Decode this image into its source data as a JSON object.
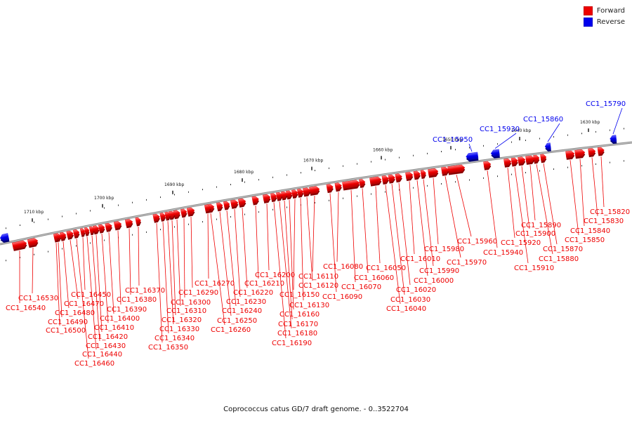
{
  "legend": {
    "forward": {
      "label": "Forward",
      "color": "#ee0000"
    },
    "reverse": {
      "label": "Reverse",
      "color": "#0000ee"
    }
  },
  "caption": "Coprococcus catus GD/7 draft genome. - 0..3522704",
  "colors": {
    "forward": "#ee0000",
    "reverse": "#0000ee",
    "backbone": "#888888"
  },
  "kbp_ticks": [
    "1630 kbp",
    "1640 kbp",
    "1650 kbp",
    "1660 kbp",
    "1670 kbp",
    "1680 kbp",
    "1690 kbp",
    "1700 kbp",
    "1710 kbp"
  ],
  "genes": [
    {
      "id": "CC1_15790",
      "strand": "reverse"
    },
    {
      "id": "CC1_15820",
      "strand": "forward"
    },
    {
      "id": "CC1_15830",
      "strand": "forward"
    },
    {
      "id": "CC1_15840",
      "strand": "forward"
    },
    {
      "id": "CC1_15850",
      "strand": "forward"
    },
    {
      "id": "CC1_15860",
      "strand": "reverse"
    },
    {
      "id": "CC1_15870",
      "strand": "forward"
    },
    {
      "id": "CC1_15880",
      "strand": "forward"
    },
    {
      "id": "CC1_15890",
      "strand": "forward"
    },
    {
      "id": "CC1_15900",
      "strand": "forward"
    },
    {
      "id": "CC1_15910",
      "strand": "forward"
    },
    {
      "id": "CC1_15920",
      "strand": "forward"
    },
    {
      "id": "CC1_15930",
      "strand": "reverse"
    },
    {
      "id": "CC1_15940",
      "strand": "forward"
    },
    {
      "id": "CC1_15950",
      "strand": "reverse"
    },
    {
      "id": "CC1_15960",
      "strand": "forward"
    },
    {
      "id": "CC1_15970",
      "strand": "forward"
    },
    {
      "id": "CC1_15980",
      "strand": "forward"
    },
    {
      "id": "CC1_15990",
      "strand": "forward"
    },
    {
      "id": "CC1_16000",
      "strand": "forward"
    },
    {
      "id": "CC1_16010",
      "strand": "forward"
    },
    {
      "id": "CC1_16020",
      "strand": "forward"
    },
    {
      "id": "CC1_16030",
      "strand": "forward"
    },
    {
      "id": "CC1_16040",
      "strand": "forward"
    },
    {
      "id": "CC1_16050",
      "strand": "forward"
    },
    {
      "id": "CC1_16060",
      "strand": "forward"
    },
    {
      "id": "CC1_16070",
      "strand": "forward"
    },
    {
      "id": "CC1_16080",
      "strand": "forward"
    },
    {
      "id": "CC1_16090",
      "strand": "forward"
    },
    {
      "id": "CC1_16110",
      "strand": "forward"
    },
    {
      "id": "CC1_16120",
      "strand": "forward"
    },
    {
      "id": "CC1_16130",
      "strand": "forward"
    },
    {
      "id": "CC1_16150",
      "strand": "forward"
    },
    {
      "id": "CC1_16160",
      "strand": "forward"
    },
    {
      "id": "CC1_16170",
      "strand": "forward"
    },
    {
      "id": "CC1_16180",
      "strand": "forward"
    },
    {
      "id": "CC1_16190",
      "strand": "forward"
    },
    {
      "id": "CC1_16200",
      "strand": "forward"
    },
    {
      "id": "CC1_16210",
      "strand": "forward"
    },
    {
      "id": "CC1_16220",
      "strand": "forward"
    },
    {
      "id": "CC1_16230",
      "strand": "forward"
    },
    {
      "id": "CC1_16240",
      "strand": "forward"
    },
    {
      "id": "CC1_16250",
      "strand": "forward"
    },
    {
      "id": "CC1_16260",
      "strand": "forward"
    },
    {
      "id": "CC1_16270",
      "strand": "forward"
    },
    {
      "id": "CC1_16290",
      "strand": "forward"
    },
    {
      "id": "CC1_16300",
      "strand": "forward"
    },
    {
      "id": "CC1_16310",
      "strand": "forward"
    },
    {
      "id": "CC1_16320",
      "strand": "forward"
    },
    {
      "id": "CC1_16330",
      "strand": "forward"
    },
    {
      "id": "CC1_16340",
      "strand": "forward"
    },
    {
      "id": "CC1_16350",
      "strand": "forward"
    },
    {
      "id": "CC1_16370",
      "strand": "forward"
    },
    {
      "id": "CC1_16380",
      "strand": "forward"
    },
    {
      "id": "CC1_16390",
      "strand": "forward"
    },
    {
      "id": "CC1_16400",
      "strand": "forward"
    },
    {
      "id": "CC1_16410",
      "strand": "forward"
    },
    {
      "id": "CC1_16420",
      "strand": "forward"
    },
    {
      "id": "CC1_16430",
      "strand": "forward"
    },
    {
      "id": "CC1_16440",
      "strand": "forward"
    },
    {
      "id": "CC1_16450",
      "strand": "forward"
    },
    {
      "id": "CC1_16460",
      "strand": "forward"
    },
    {
      "id": "CC1_16470",
      "strand": "forward"
    },
    {
      "id": "CC1_16480",
      "strand": "forward"
    },
    {
      "id": "CC1_16490",
      "strand": "forward"
    },
    {
      "id": "CC1_16500",
      "strand": "forward"
    },
    {
      "id": "CC1_16530",
      "strand": "forward"
    },
    {
      "id": "CC1_16540",
      "strand": "forward"
    }
  ]
}
